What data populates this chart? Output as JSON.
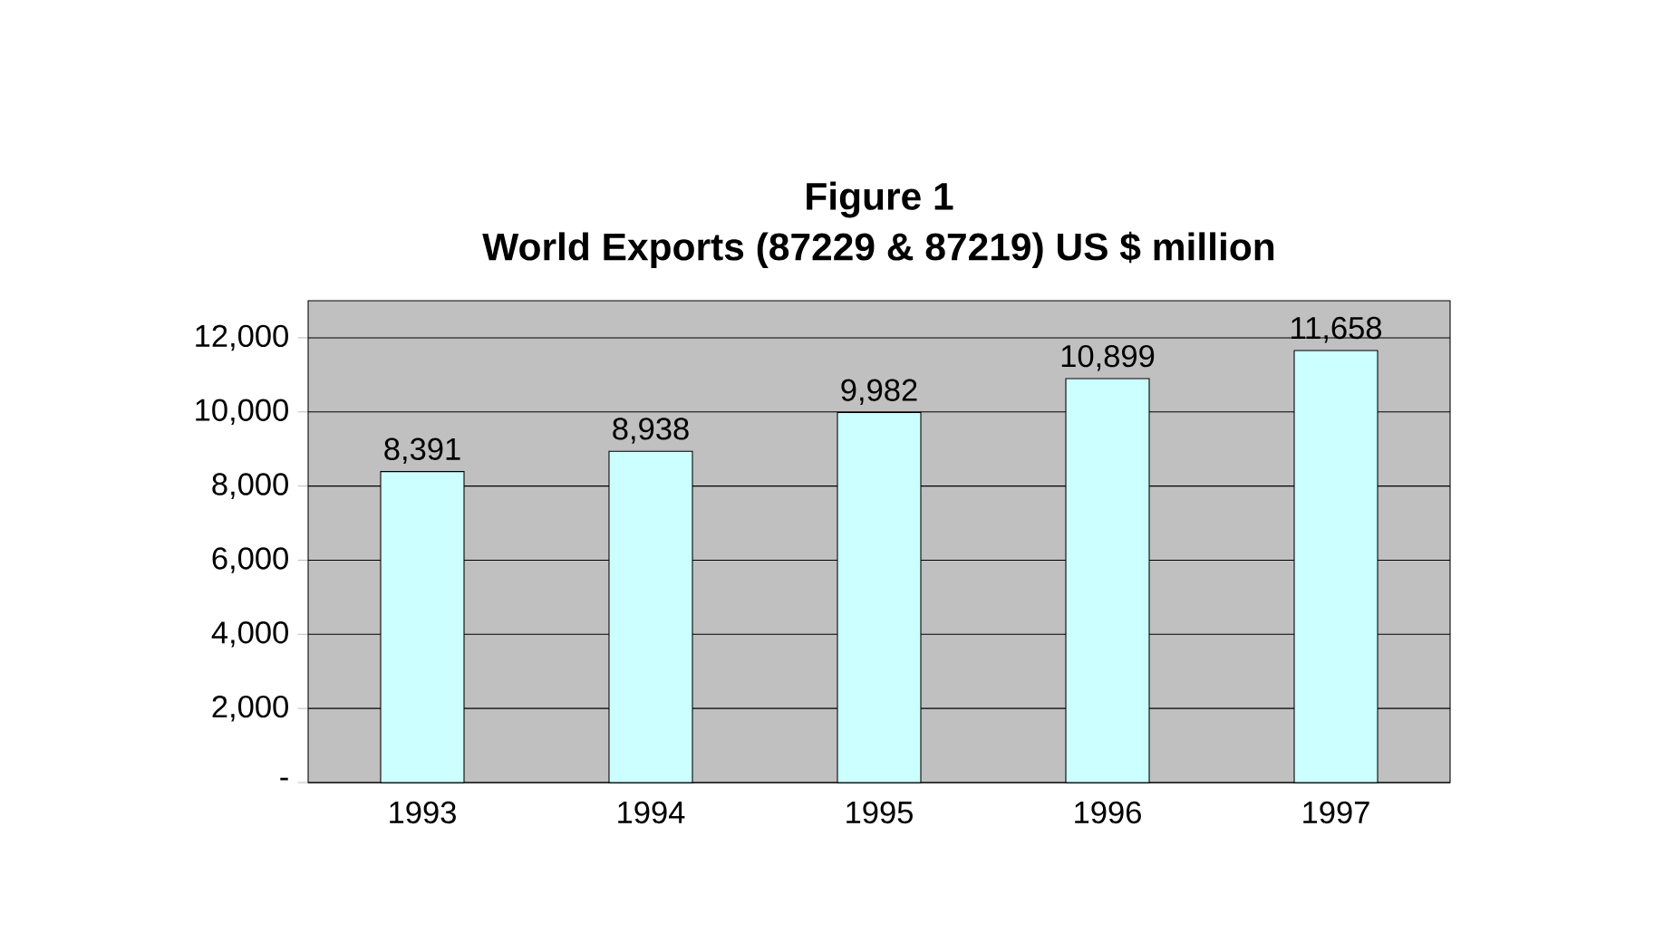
{
  "chart_data": {
    "type": "bar",
    "title": "Figure 1",
    "subtitle": "World Exports (87229 & 87219) US $ million",
    "categories": [
      "1993",
      "1994",
      "1995",
      "1996",
      "1997"
    ],
    "values": [
      8391,
      8938,
      9982,
      10899,
      11658
    ],
    "value_labels": [
      "8,391",
      "8,938",
      "9,982",
      "10,899",
      "11,658"
    ],
    "color": "#ccffff",
    "ylim": [
      0,
      13000
    ],
    "yticks": [
      {
        "value": 0,
        "label": "-"
      },
      {
        "value": 2000,
        "label": "2,000"
      },
      {
        "value": 4000,
        "label": "4,000"
      },
      {
        "value": 6000,
        "label": "6,000"
      },
      {
        "value": 8000,
        "label": "8,000"
      },
      {
        "value": 10000,
        "label": "10,000"
      },
      {
        "value": 12000,
        "label": "12,000"
      }
    ],
    "grid": "y"
  }
}
